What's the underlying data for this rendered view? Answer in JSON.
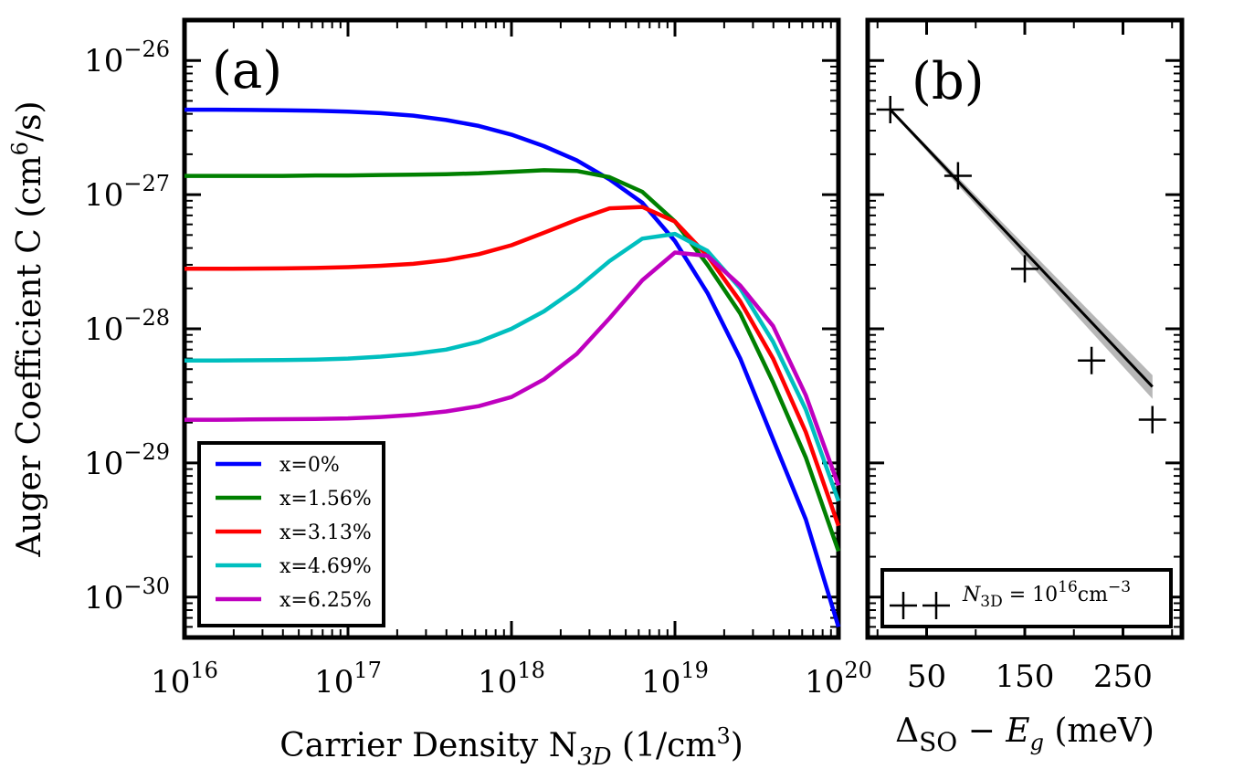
{
  "chart_data": [
    {
      "panel": "(a)",
      "type": "line",
      "xscale": "log",
      "yscale": "log",
      "xlim": [
        1e+16,
        1e+20
      ],
      "ylim": [
        5e-31,
        2e-26
      ],
      "xlabel": {
        "main": "Carrier Density N",
        "sub": "3D",
        "unit_open": " (1/cm",
        "unit_sup": "3",
        "unit_close": ")"
      },
      "ylabel": {
        "main": "Auger Coefficient C (cm",
        "sup": "6",
        "close": "/s)"
      },
      "x_ticks": [
        {
          "value": 1e+16,
          "base": "10",
          "exp": "16"
        },
        {
          "value": 1e+17,
          "base": "10",
          "exp": "17"
        },
        {
          "value": 1e+18,
          "base": "10",
          "exp": "18"
        },
        {
          "value": 1e+19,
          "base": "10",
          "exp": "19"
        },
        {
          "value": 1e+20,
          "base": "10",
          "exp": "20"
        }
      ],
      "y_ticks": [
        {
          "value": 1e-30,
          "base": "10",
          "exp": "−30"
        },
        {
          "value": 1e-29,
          "base": "10",
          "exp": "−29"
        },
        {
          "value": 1e-28,
          "base": "10",
          "exp": "−28"
        },
        {
          "value": 1e-27,
          "base": "10",
          "exp": "−27"
        },
        {
          "value": 1e-26,
          "base": "10",
          "exp": "−26"
        }
      ],
      "legend_position": "lower-left",
      "x": [
        1e+16,
        1.58e+16,
        2.51e+16,
        3.98e+16,
        6.31e+16,
        1e+17,
        1.58e+17,
        2.51e+17,
        3.98e+17,
        6.31e+17,
        1e+18,
        1.58e+18,
        2.51e+18,
        3.98e+18,
        6.31e+18,
        1e+19,
        1.58e+19,
        2.51e+19,
        3.98e+19,
        6.31e+19,
        1e+20
      ],
      "series": [
        {
          "name": "x=0%",
          "color": "#0000ff",
          "values": [
            4.3e-27,
            4.3e-27,
            4.28e-27,
            4.26e-27,
            4.22e-27,
            4.15e-27,
            4.05e-27,
            3.88e-27,
            3.6e-27,
            3.25e-27,
            2.8e-27,
            2.3e-27,
            1.8e-27,
            1.3e-27,
            8.7e-28,
            4.5e-28,
            1.85e-28,
            6e-29,
            1.5e-29,
            3.8e-30,
            6e-31
          ]
        },
        {
          "name": "x=1.56%",
          "color": "#008000",
          "values": [
            1.38e-27,
            1.38e-27,
            1.38e-27,
            1.38e-27,
            1.39e-27,
            1.39e-27,
            1.4e-27,
            1.41e-27,
            1.42e-27,
            1.44e-27,
            1.48e-27,
            1.52e-27,
            1.5e-27,
            1.35e-27,
            1.05e-27,
            6.3e-28,
            3e-28,
            1.3e-28,
            4e-29,
            1.1e-29,
            2.2e-30
          ]
        },
        {
          "name": "x=3.13%",
          "color": "#ff0000",
          "values": [
            2.8e-28,
            2.8e-28,
            2.81e-28,
            2.82e-28,
            2.84e-28,
            2.88e-28,
            2.95e-28,
            3.05e-28,
            3.25e-28,
            3.6e-28,
            4.2e-28,
            5.2e-28,
            6.5e-28,
            7.9e-28,
            8.1e-28,
            6.3e-28,
            3.5e-28,
            1.6e-28,
            6e-29,
            1.7e-29,
            3.4e-30
          ]
        },
        {
          "name": "x=4.69%",
          "color": "#00bfbf",
          "values": [
            5.8e-29,
            5.8e-29,
            5.82e-29,
            5.85e-29,
            5.9e-29,
            6e-29,
            6.2e-29,
            6.5e-29,
            7e-29,
            8e-29,
            1e-28,
            1.35e-28,
            2e-28,
            3.2e-28,
            4.7e-28,
            5.1e-28,
            3.8e-28,
            2e-28,
            8e-29,
            2.5e-29,
            5.2e-30
          ]
        },
        {
          "name": "x=6.25%",
          "color": "#bf00bf",
          "values": [
            2.1e-29,
            2.1e-29,
            2.11e-29,
            2.12e-29,
            2.13e-29,
            2.15e-29,
            2.2e-29,
            2.28e-29,
            2.42e-29,
            2.65e-29,
            3.1e-29,
            4.2e-29,
            6.5e-29,
            1.2e-28,
            2.3e-28,
            3.7e-28,
            3.5e-28,
            2.1e-28,
            1.05e-28,
            3.2e-29,
            6.8e-30
          ]
        }
      ]
    },
    {
      "panel": "(b)",
      "type": "scatter",
      "yscale": "log",
      "xlim": [
        -10,
        310
      ],
      "ylim": [
        5e-31,
        2e-26
      ],
      "xlabel": {
        "delta": "Δ",
        "sub": "SO",
        "minus": " − ",
        "var": "E",
        "var_sub": "g",
        "unit": " (meV)"
      },
      "x_ticks": [
        {
          "value": 50,
          "label": "50"
        },
        {
          "value": 150,
          "label": "150"
        },
        {
          "value": 250,
          "label": "250"
        }
      ],
      "legend_position": "bottom",
      "legend": {
        "prefix": "N",
        "prefix_sub": "3D",
        "equals": " = 10",
        "exp": "16",
        "unit": "cm",
        "unit_exp": "−3"
      },
      "points": [
        {
          "x": 13,
          "y": 4.3e-27
        },
        {
          "x": 82,
          "y": 1.38e-27
        },
        {
          "x": 150,
          "y": 2.8e-28
        },
        {
          "x": 218,
          "y": 5.8e-29
        },
        {
          "x": 280,
          "y": 2.1e-29
        }
      ],
      "fit_line": {
        "x": [
          13,
          280
        ],
        "y": [
          4.3e-27,
          3.7e-29
        ],
        "band_lower": [
          4.2e-27,
          3e-29
        ],
        "band_upper": [
          4.4e-27,
          4.5e-29
        ]
      }
    }
  ]
}
